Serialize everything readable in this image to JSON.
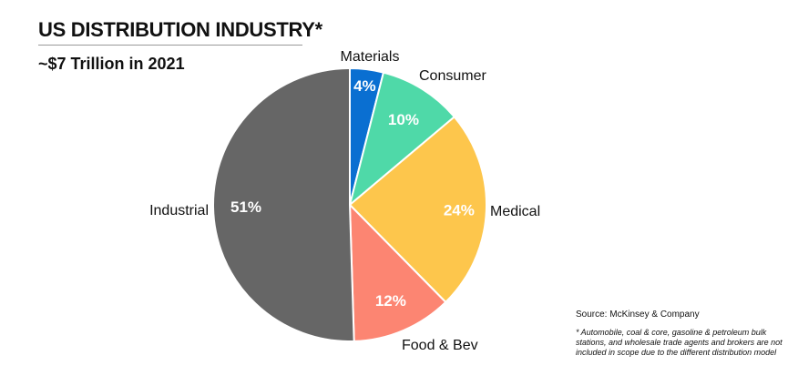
{
  "chart_data": {
    "type": "pie",
    "title": "US DISTRIBUTION INDUSTRY*",
    "subtitle": "~$7 Trillion in 2021",
    "slices": [
      {
        "label": "Materials",
        "value": 4,
        "value_label": "4%",
        "color": "#0a6fd1"
      },
      {
        "label": "Consumer",
        "value": 10,
        "value_label": "10%",
        "color": "#4fd9a8"
      },
      {
        "label": "Medical",
        "value": 24,
        "value_label": "24%",
        "color": "#fdc64c"
      },
      {
        "label": "Food & Bev",
        "value": 12,
        "value_label": "12%",
        "color": "#fc8572"
      },
      {
        "label": "Industrial",
        "value": 51,
        "value_label": "51%",
        "color": "#666666"
      }
    ],
    "source": "Source: McKinsey & Company",
    "footnote": "* Automobile, coal & core, gasoline & petroleum bulk stations, and wholesale trade agents and brokers are not included in scope due to the different distribution model"
  }
}
